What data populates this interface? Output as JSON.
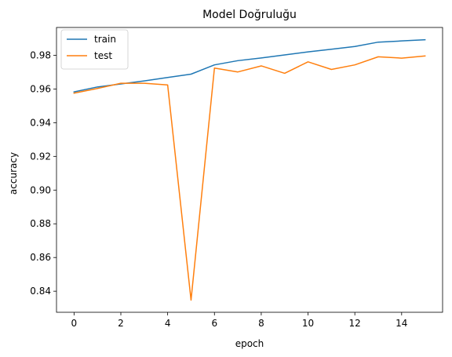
{
  "chart_data": {
    "type": "line",
    "title": "Model Doğruluğu",
    "xlabel": "epoch",
    "ylabel": "accuracy",
    "x": [
      0,
      1,
      2,
      3,
      4,
      5,
      6,
      7,
      8,
      9,
      10,
      11,
      12,
      13,
      14,
      15
    ],
    "xlim": [
      -0.75,
      15.75
    ],
    "ylim": [
      0.8275,
      0.9965
    ],
    "xticks": [
      0,
      2,
      4,
      6,
      8,
      10,
      12,
      14
    ],
    "xtick_labels": [
      "0",
      "2",
      "4",
      "6",
      "8",
      "10",
      "12",
      "14"
    ],
    "yticks": [
      0.84,
      0.86,
      0.88,
      0.9,
      0.92,
      0.94,
      0.96,
      0.98
    ],
    "ytick_labels": [
      "0.84",
      "0.86",
      "0.88",
      "0.90",
      "0.92",
      "0.94",
      "0.96",
      "0.98"
    ],
    "grid": false,
    "legend_position": "top-left",
    "series": [
      {
        "name": "train",
        "color": "#1f77b4",
        "values": [
          0.9583,
          0.9612,
          0.963,
          0.9648,
          0.9668,
          0.9688,
          0.9743,
          0.9768,
          0.9784,
          0.9802,
          0.982,
          0.9836,
          0.9852,
          0.9878,
          0.9885,
          0.9892
        ]
      },
      {
        "name": "test",
        "color": "#ff7f0e",
        "values": [
          0.9575,
          0.9603,
          0.9634,
          0.9634,
          0.9624,
          0.8347,
          0.9724,
          0.9701,
          0.9737,
          0.9693,
          0.9761,
          0.9716,
          0.9743,
          0.9791,
          0.9783,
          0.9796
        ]
      }
    ]
  }
}
